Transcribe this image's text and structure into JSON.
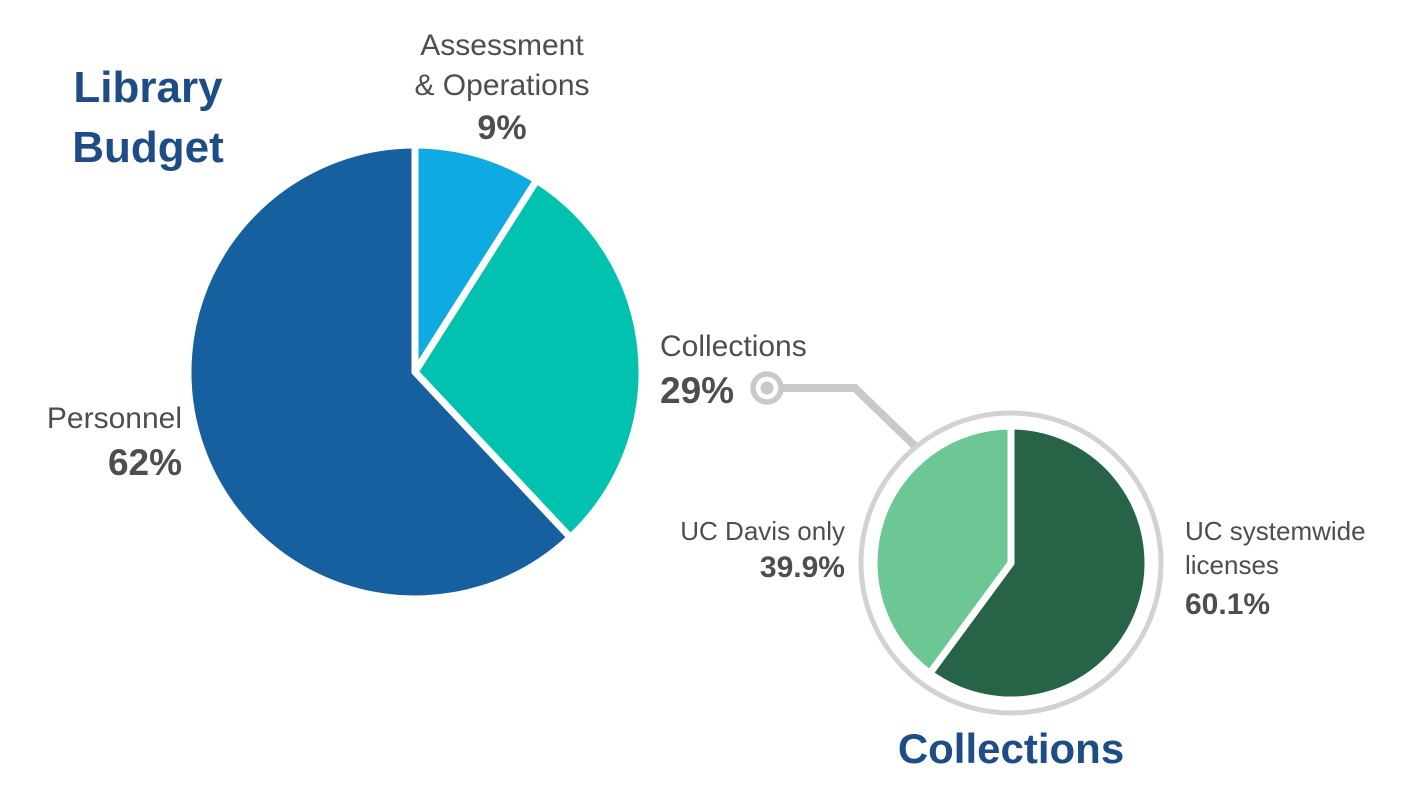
{
  "colors": {
    "title_blue": "#1e4c87",
    "label_gray": "#4e4e4e",
    "connector_gray": "#c9c9c9",
    "ring_gray": "#d2d2d2",
    "background": "#ffffff",
    "slice_gap": "#ffffff"
  },
  "chart_data": [
    {
      "type": "pie",
      "title": "Library Budget",
      "categories": [
        "Assessment & Operations",
        "Collections",
        "Personnel"
      ],
      "values": [
        9,
        29,
        62
      ],
      "unit": "%",
      "colors": [
        "#0faae1",
        "#00c2ae",
        "#17609f"
      ],
      "start_angle_deg": 0,
      "direction": "clockwise"
    },
    {
      "type": "pie",
      "title": "Collections",
      "categories": [
        "UC systemwide licenses",
        "UC Davis only"
      ],
      "values": [
        60.1,
        39.9
      ],
      "unit": "%",
      "colors": [
        "#276347",
        "#6cc795"
      ],
      "start_angle_deg": 0,
      "direction": "clockwise"
    }
  ],
  "labels": {
    "main_title": {
      "line1": "Library",
      "line2": "Budget"
    },
    "assessment": {
      "line1": "Assessment",
      "line2": "& Operations",
      "pct": "9%"
    },
    "personnel": {
      "name": "Personnel",
      "pct": "62%"
    },
    "collections_callout": {
      "name": "Collections",
      "pct": "29%"
    },
    "uc_davis": {
      "name": "UC Davis only",
      "pct": "39.9%"
    },
    "uc_systemwide": {
      "line1": "UC systemwide",
      "line2": "licenses",
      "pct": "60.1%"
    },
    "collections_title": "Collections"
  }
}
